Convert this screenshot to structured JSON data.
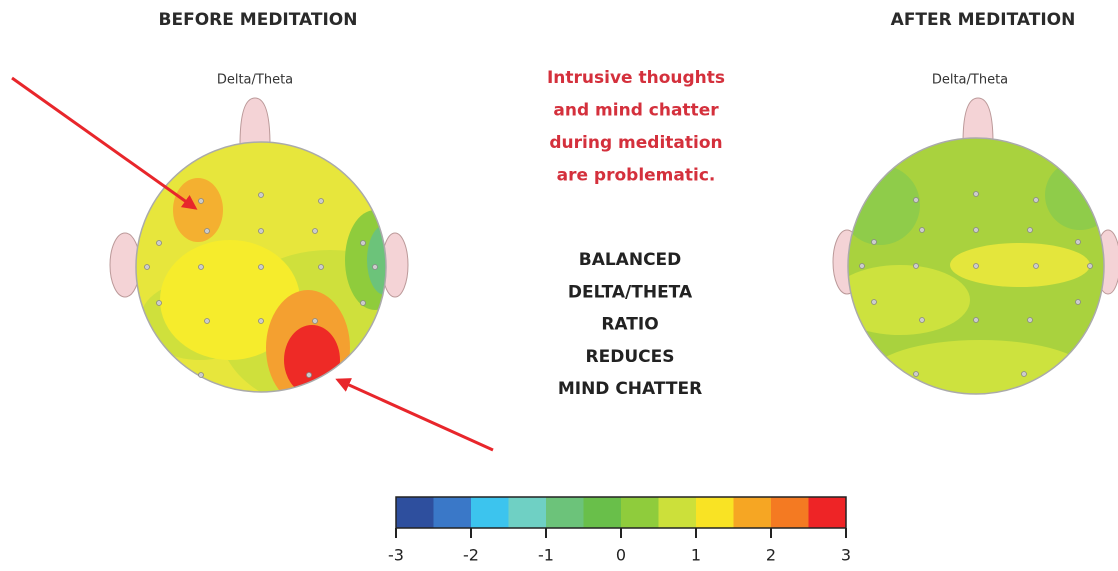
{
  "left": {
    "title": "BEFORE MEDITATION",
    "label": "Delta/Theta"
  },
  "right": {
    "title": "AFTER MEDITATION",
    "label": "Delta/Theta"
  },
  "note": {
    "lines": [
      "Intrusive thoughts",
      "and mind chatter",
      "during meditation",
      "are problematic."
    ]
  },
  "message": {
    "lines": [
      "BALANCED",
      "DELTA/THETA",
      "RATIO",
      "REDUCES",
      "MIND CHATTER"
    ]
  },
  "colorbar": {
    "lim": [
      -3,
      3
    ],
    "ticks": [
      -3,
      -2,
      -1,
      0,
      1,
      2,
      3
    ],
    "colors": [
      "#2e4f9e",
      "#3a78c8",
      "#3cc4ee",
      "#6fd0c4",
      "#6cc37a",
      "#69bf4a",
      "#8fcc3c",
      "#cce03a",
      "#f9e324",
      "#f6a623",
      "#f47a22",
      "#ee2426"
    ]
  }
}
